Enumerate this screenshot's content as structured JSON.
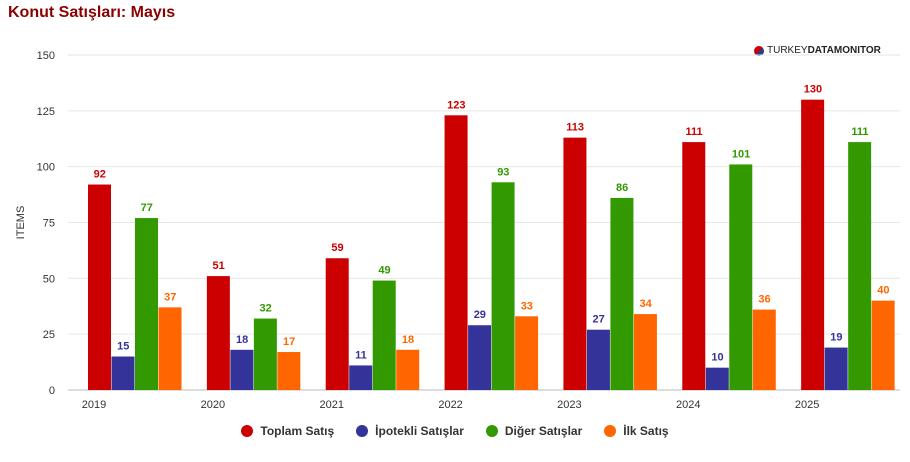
{
  "header": {
    "title": "Konut Satışları: Mayıs"
  },
  "brand": {
    "part1": "TURKEY",
    "part2": "DATA",
    "part3": "MONITOR"
  },
  "chart_data": {
    "type": "bar",
    "ylabel": "ITEMS",
    "ylim": [
      0,
      150
    ],
    "yticks": [
      0,
      25,
      50,
      75,
      100,
      125,
      150
    ],
    "grid": true,
    "legend_position": "bottom",
    "categories": [
      "2019",
      "2020",
      "2021",
      "2022",
      "2023",
      "2024",
      "2025"
    ],
    "series": [
      {
        "name": "Toplam Satış",
        "color": "#cc0000",
        "values": [
          92,
          51,
          59,
          123,
          113,
          111,
          130
        ]
      },
      {
        "name": "İpotekli Satışlar",
        "color": "#333399",
        "values": [
          15,
          18,
          11,
          29,
          27,
          10,
          19
        ]
      },
      {
        "name": "Diğer Satışlar",
        "color": "#339900",
        "values": [
          77,
          32,
          49,
          93,
          86,
          101,
          111
        ]
      },
      {
        "name": "İlk Satış",
        "color": "#ff6600",
        "values": [
          37,
          17,
          18,
          33,
          34,
          36,
          40
        ]
      }
    ]
  }
}
